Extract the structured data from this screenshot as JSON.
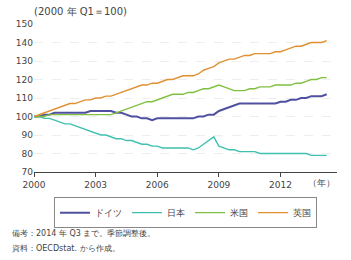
{
  "chart_data": {
    "type": "line",
    "title": "(2000 年 Q1＝100)",
    "xlabel": "（年）",
    "annotations": [
      "備考：2014 年 Q3 まで。季節調整後。",
      "資料：OECDstat. から作成。"
    ],
    "x": [
      2000,
      2000.25,
      2000.5,
      2000.75,
      2001,
      2001.25,
      2001.5,
      2001.75,
      2002,
      2002.25,
      2002.5,
      2002.75,
      2003,
      2003.25,
      2003.5,
      2003.75,
      2004,
      2004.25,
      2004.5,
      2004.75,
      2005,
      2005.25,
      2005.5,
      2005.75,
      2006,
      2006.25,
      2006.5,
      2006.75,
      2007,
      2007.25,
      2007.5,
      2007.75,
      2008,
      2008.25,
      2008.5,
      2008.75,
      2009,
      2009.25,
      2009.5,
      2009.75,
      2010,
      2010.25,
      2010.5,
      2010.75,
      2011,
      2011.25,
      2011.5,
      2011.75,
      2012,
      2012.25,
      2012.5,
      2012.75,
      2013,
      2013.25,
      2013.5,
      2013.75,
      2014,
      2014.25
    ],
    "xlim": [
      2000,
      2014.75
    ],
    "xticks": [
      2000,
      2003,
      2006,
      2009,
      2012
    ],
    "ylim": [
      70,
      150
    ],
    "yticks": [
      70,
      80,
      90,
      100,
      110,
      120,
      130,
      140,
      150
    ],
    "grid": "y",
    "legend": "bottom",
    "series": [
      {
        "name": "ドイツ",
        "color": "#5050a0",
        "values": [
          100,
          100,
          101,
          101,
          102,
          102,
          102,
          102,
          102,
          102,
          102,
          103,
          103,
          103,
          103,
          103,
          102,
          102,
          101,
          100,
          100,
          99,
          99,
          98,
          99,
          99,
          99,
          99,
          99,
          99,
          99,
          99,
          100,
          100,
          101,
          101,
          103,
          104,
          105,
          106,
          107,
          107,
          107,
          107,
          107,
          107,
          107,
          107,
          108,
          108,
          109,
          109,
          110,
          110,
          111,
          111,
          111,
          112
        ]
      },
      {
        "name": "日本",
        "color": "#40c0b0",
        "values": [
          100,
          100,
          99,
          99,
          98,
          97,
          96,
          96,
          95,
          94,
          93,
          92,
          91,
          90,
          90,
          89,
          88,
          88,
          87,
          87,
          86,
          85,
          85,
          84,
          84,
          83,
          83,
          83,
          83,
          83,
          83,
          82,
          83,
          85,
          87,
          89,
          84,
          83,
          82,
          82,
          81,
          81,
          81,
          81,
          80,
          80,
          80,
          80,
          80,
          80,
          80,
          80,
          80,
          80,
          79,
          79,
          79,
          79
        ]
      },
      {
        "name": "米国",
        "color": "#80c040",
        "values": [
          100,
          100,
          100,
          101,
          101,
          101,
          101,
          101,
          101,
          101,
          101,
          101,
          101,
          101,
          101,
          101,
          102,
          103,
          104,
          105,
          106,
          107,
          108,
          108,
          109,
          110,
          111,
          112,
          112,
          112,
          113,
          113,
          114,
          115,
          115,
          116,
          117,
          116,
          115,
          114,
          114,
          114,
          115,
          115,
          116,
          116,
          116,
          117,
          117,
          117,
          117,
          118,
          118,
          119,
          120,
          120,
          121,
          121
        ]
      },
      {
        "name": "英国",
        "color": "#e09030",
        "values": [
          100,
          101,
          102,
          103,
          104,
          105,
          106,
          107,
          107,
          108,
          109,
          109,
          110,
          110,
          111,
          111,
          112,
          113,
          114,
          115,
          116,
          117,
          117,
          118,
          118,
          119,
          120,
          120,
          121,
          122,
          122,
          122,
          123,
          125,
          126,
          127,
          129,
          130,
          131,
          131,
          132,
          133,
          133,
          134,
          134,
          134,
          134,
          135,
          135,
          136,
          137,
          138,
          138,
          139,
          140,
          140,
          140,
          141
        ]
      }
    ]
  }
}
